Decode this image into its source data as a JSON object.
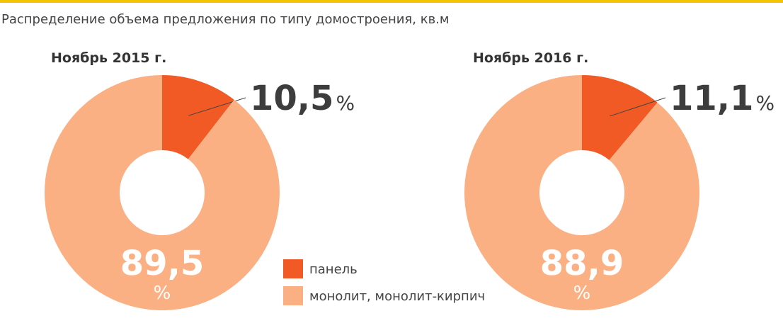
{
  "title": "Распределение объема предложения по типу домостроения, кв.м",
  "chart_data": [
    {
      "type": "pie",
      "title": "Ноябрь 2015 г.",
      "categories": [
        "панель",
        "монолит, монолит-кирпич"
      ],
      "values": [
        10.5,
        89.5
      ],
      "value_labels": [
        "10,5%",
        "89,5%"
      ],
      "colors": [
        "#f15a24",
        "#fbb084"
      ]
    },
    {
      "type": "pie",
      "title": "Ноябрь 2016 г.",
      "categories": [
        "панель",
        "монолит, монолит-кирпич"
      ],
      "values": [
        11.1,
        88.9
      ],
      "value_labels": [
        "11,1%",
        "88,9%"
      ],
      "colors": [
        "#f15a24",
        "#fbb084"
      ]
    }
  ]
}
